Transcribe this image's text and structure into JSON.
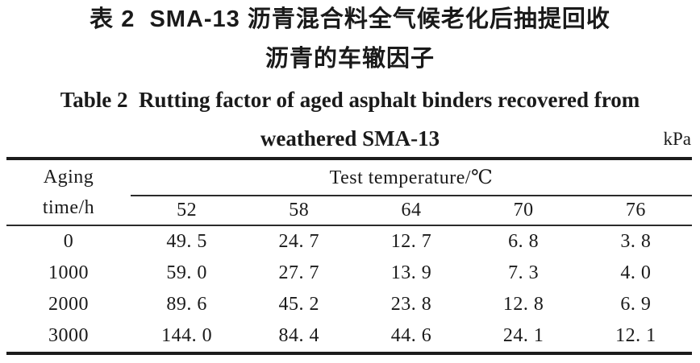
{
  "caption_zh": {
    "line1": "表 2  SMA-13 沥青混合料全气候老化后抽提回收",
    "line2": "沥青的车辙因子"
  },
  "caption_en": {
    "line1": "Table 2  Rutting factor of aged asphalt binders recovered from",
    "line2": "weathered SMA-13"
  },
  "unit": "kPa",
  "colors": {
    "text": "#1a1a1a",
    "rule": "#1c1c1c",
    "background": "#ffffff"
  },
  "table": {
    "row_header": {
      "line1": "Aging",
      "line2": "time/h"
    },
    "col_group_label": "Test temperature/℃",
    "temperatures": [
      "52",
      "58",
      "64",
      "70",
      "76"
    ],
    "rows": [
      {
        "aging_time": "0",
        "values": [
          "49. 5",
          "24. 7",
          "12. 7",
          "6. 8",
          "3. 8"
        ]
      },
      {
        "aging_time": "1000",
        "values": [
          "59. 0",
          "27. 7",
          "13. 9",
          "7. 3",
          "4. 0"
        ]
      },
      {
        "aging_time": "2000",
        "values": [
          "89. 6",
          "45. 2",
          "23. 8",
          "12. 8",
          "6. 9"
        ]
      },
      {
        "aging_time": "3000",
        "values": [
          "144. 0",
          "84. 4",
          "44. 6",
          "24. 1",
          "12. 1"
        ]
      }
    ]
  }
}
